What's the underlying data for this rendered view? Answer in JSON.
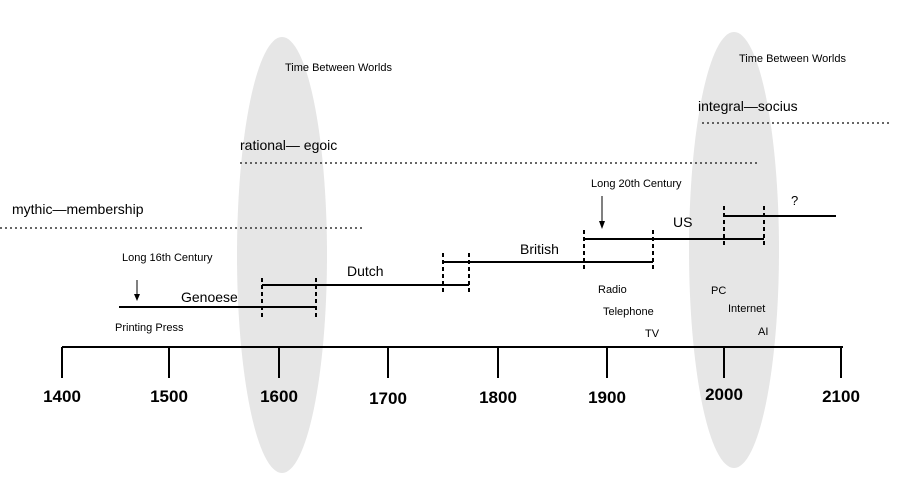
{
  "ellipses": [
    {
      "label": "Time Between Worlds"
    },
    {
      "label": "Time Between Worlds"
    }
  ],
  "worldviews": [
    {
      "id": "mythic",
      "label": "mythic—membership"
    },
    {
      "id": "rational",
      "label": "rational— egoic"
    },
    {
      "id": "integral",
      "label": "integral—socius"
    }
  ],
  "hegemonies": [
    {
      "id": "genoese",
      "label": "Genoese"
    },
    {
      "id": "dutch",
      "label": "Dutch"
    },
    {
      "id": "british",
      "label": "British"
    },
    {
      "id": "us",
      "label": "US"
    },
    {
      "id": "unknown",
      "label": "?"
    }
  ],
  "long_centuries": [
    {
      "id": "long16",
      "label": "Long 16th Century"
    },
    {
      "id": "long20",
      "label": "Long 20th Century"
    }
  ],
  "technologies": [
    {
      "id": "printing-press",
      "label": "Printing Press"
    },
    {
      "id": "radio",
      "label": "Radio"
    },
    {
      "id": "telephone",
      "label": "Telephone"
    },
    {
      "id": "tv",
      "label": "TV"
    },
    {
      "id": "pc",
      "label": "PC"
    },
    {
      "id": "internet",
      "label": "Internet"
    },
    {
      "id": "ai",
      "label": "AI"
    }
  ],
  "axis": {
    "years": [
      "1400",
      "1500",
      "1600",
      "1700",
      "1800",
      "1900",
      "2000",
      "2100"
    ]
  }
}
